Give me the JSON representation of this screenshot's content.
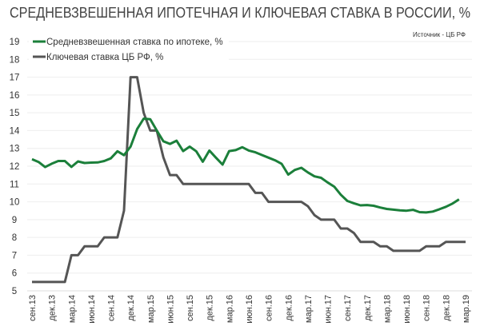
{
  "chart_data": {
    "type": "line",
    "title": "СРЕДНЕВЗВЕШЕННАЯ ИПОТЕЧНАЯ  И КЛЮЧЕВАЯ СТАВКА В РОССИИ, %",
    "source": "Источник  - ЦБ РФ",
    "xlabel": "",
    "ylabel": "",
    "ylim": [
      5,
      19
    ],
    "yticks": [
      5,
      6,
      7,
      8,
      9,
      10,
      11,
      12,
      13,
      14,
      15,
      16,
      17,
      18,
      19
    ],
    "grid": true,
    "legend_position": "top-left",
    "x_tick_labels": [
      "сен.13",
      "дек.13",
      "мар.14",
      "июн.14",
      "сен.14",
      "дек.14",
      "мар.15",
      "июн.15",
      "сен.15",
      "дек.15",
      "мар.16",
      "июн.16",
      "сен.16",
      "дек.16",
      "мар.17",
      "июн.17",
      "сен.17",
      "дек.17",
      "мар.18",
      "июн.18",
      "сен.18",
      "дек.18",
      "мар.19"
    ],
    "x_start": "2013-09",
    "x_frequency": "monthly",
    "series": [
      {
        "name": "Средневзвешенная ставка по ипотеке, %",
        "color": "#1b7f3a",
        "values": [
          12.39,
          12.24,
          11.95,
          12.14,
          12.29,
          12.29,
          11.96,
          12.27,
          12.18,
          12.2,
          12.21,
          12.29,
          12.44,
          12.84,
          12.62,
          13.1,
          14.08,
          14.67,
          14.64,
          14.0,
          13.4,
          13.25,
          13.43,
          12.85,
          13.1,
          12.84,
          12.25,
          12.88,
          12.48,
          12.09,
          12.85,
          12.9,
          13.07,
          12.88,
          12.78,
          12.63,
          12.48,
          12.33,
          12.13,
          11.53,
          11.79,
          11.91,
          11.65,
          11.43,
          11.35,
          11.09,
          10.85,
          10.4,
          10.05,
          9.92,
          9.8,
          9.82,
          9.78,
          9.68,
          9.6,
          9.56,
          9.52,
          9.5,
          9.55,
          9.42,
          9.4,
          9.45,
          9.58,
          9.72,
          9.9,
          10.14
        ]
      },
      {
        "name": "Ключевая ставка ЦБ РФ, %",
        "color": "#555555",
        "values": [
          5.5,
          5.5,
          5.5,
          5.5,
          5.5,
          5.5,
          7,
          7,
          7.5,
          7.5,
          7.5,
          8,
          8,
          8,
          9.5,
          17,
          17,
          15,
          14,
          14,
          12.5,
          11.5,
          11.5,
          11,
          11,
          11,
          11,
          11,
          11,
          11,
          11,
          11,
          11,
          11,
          10.5,
          10.5,
          10,
          10,
          10,
          10,
          10,
          10,
          9.75,
          9.25,
          9,
          9,
          9,
          8.5,
          8.5,
          8.25,
          7.75,
          7.75,
          7.75,
          7.5,
          7.5,
          7.25,
          7.25,
          7.25,
          7.25,
          7.25,
          7.5,
          7.5,
          7.5,
          7.75,
          7.75,
          7.75,
          7.75
        ]
      }
    ]
  }
}
